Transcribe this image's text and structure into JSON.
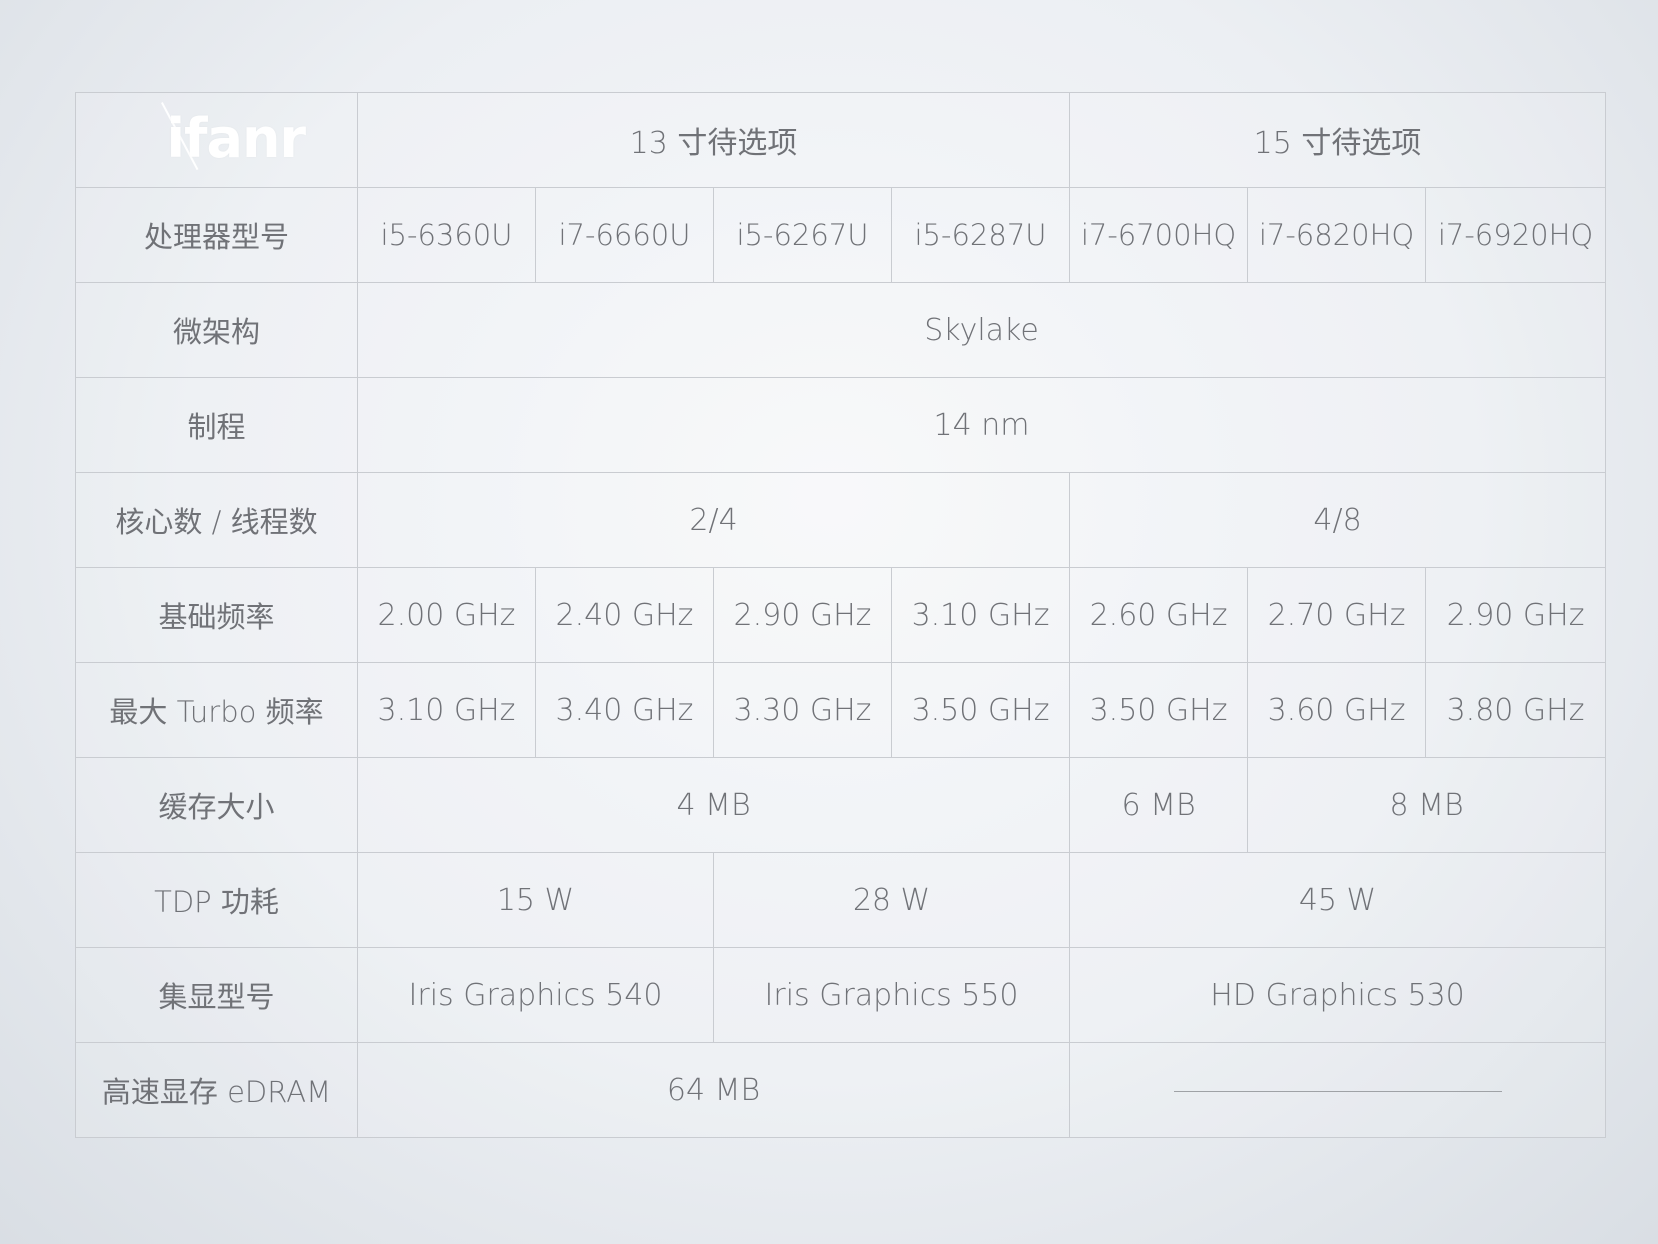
{
  "logo": {
    "text": "ifanr"
  },
  "header": {
    "group_13": "13 寸待选项",
    "group_15": "15 寸待选项"
  },
  "rows": {
    "processor": {
      "label": "处理器型号",
      "values": [
        "i5-6360U",
        "i7-6660U",
        "i5-6267U",
        "i5-6287U",
        "i7-6700HQ",
        "i7-6820HQ",
        "i7-6920HQ"
      ]
    },
    "microarch": {
      "label": "微架构",
      "value": "Skylake"
    },
    "process": {
      "label": "制程",
      "value": "14 nm"
    },
    "cores": {
      "label": "核心数 / 线程数",
      "value_13": "2/4",
      "value_15": "4/8"
    },
    "base_freq": {
      "label": "基础频率",
      "values": [
        "2.00 GHz",
        "2.40 GHz",
        "2.90 GHz",
        "3.10 GHz",
        "2.60 GHz",
        "2.70 GHz",
        "2.90 GHz"
      ]
    },
    "turbo_freq": {
      "label": "最大 Turbo 频率",
      "values": [
        "3.10 GHz",
        "3.40 GHz",
        "3.30 GHz",
        "3.50 GHz",
        "3.50 GHz",
        "3.60 GHz",
        "3.80 GHz"
      ]
    },
    "cache": {
      "label": "缓存大小",
      "value_13": "4 MB",
      "value_6700": "6 MB",
      "value_other": "8 MB"
    },
    "tdp": {
      "label": "TDP 功耗",
      "value_a": "15 W",
      "value_b": "28 W",
      "value_15": "45 W"
    },
    "igpu": {
      "label": "集显型号",
      "value_a": "Iris Graphics 540",
      "value_b": "Iris Graphics 550",
      "value_15": "HD Graphics 530"
    },
    "edram": {
      "label": "高速显存 eDRAM",
      "value_13": "64 MB"
    }
  }
}
